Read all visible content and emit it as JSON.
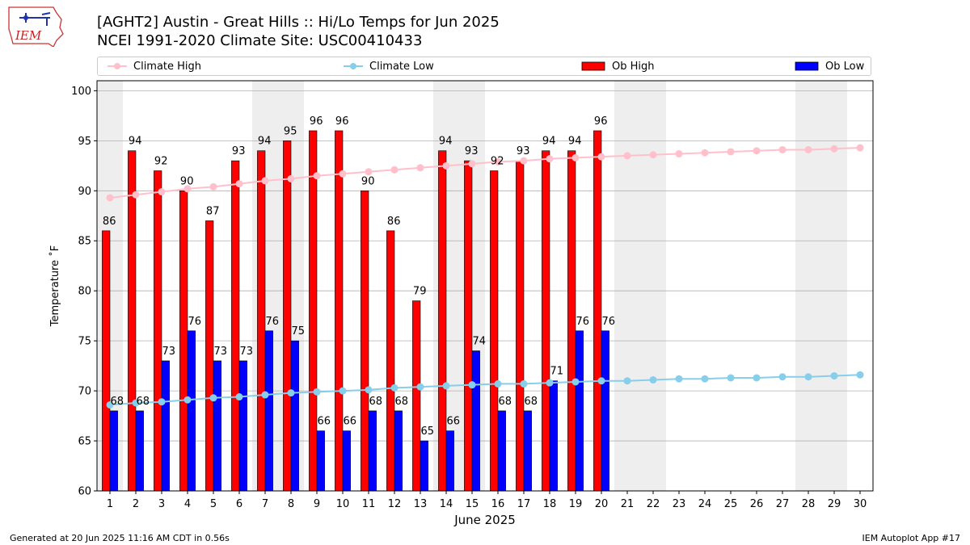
{
  "titles": {
    "line1": "[AGHT2] Austin - Great Hills :: Hi/Lo Temps for Jun 2025",
    "line2": "NCEI 1991-2020 Climate Site: USC00410433"
  },
  "logo": {
    "text": "IEM"
  },
  "footer": {
    "left": "Generated at 20 Jun 2025 11:16 AM CDT in 0.56s",
    "right": "IEM Autoplot App #17"
  },
  "colors": {
    "climate_high": "#ffc0cb",
    "climate_low": "#87ceeb",
    "ob_high": "#ff0000",
    "ob_low": "#0000ff",
    "weekend_band": "#eeeeee",
    "grid": "#b0b0b0"
  },
  "chart_data": {
    "type": "bar",
    "xlabel": "June 2025",
    "ylabel": "Temperature ˚F",
    "ylim": [
      60,
      101
    ],
    "xlim": [
      0.5,
      30.5
    ],
    "yticks": [
      60,
      65,
      70,
      75,
      80,
      85,
      90,
      95,
      100
    ],
    "x": [
      1,
      2,
      3,
      4,
      5,
      6,
      7,
      8,
      9,
      10,
      11,
      12,
      13,
      14,
      15,
      16,
      17,
      18,
      19,
      20,
      21,
      22,
      23,
      24,
      25,
      26,
      27,
      28,
      29,
      30
    ],
    "grid": "horizontal",
    "legend_position": "top",
    "weekend_days": [
      1,
      7,
      8,
      14,
      15,
      21,
      22,
      28,
      29
    ],
    "legend": [
      "Climate High",
      "Climate Low",
      "Ob High",
      "Ob Low"
    ],
    "series": [
      {
        "name": "Ob High",
        "kind": "bar",
        "values": [
          86,
          94,
          92,
          90,
          87,
          93,
          94,
          95,
          96,
          96,
          90,
          86,
          79,
          94,
          93,
          92,
          93,
          94,
          94,
          96,
          null,
          null,
          null,
          null,
          null,
          null,
          null,
          null,
          null,
          null
        ]
      },
      {
        "name": "Ob Low",
        "kind": "bar",
        "values": [
          68,
          68,
          73,
          76,
          73,
          73,
          76,
          75,
          66,
          66,
          68,
          68,
          65,
          66,
          74,
          68,
          68,
          71,
          76,
          76,
          null,
          null,
          null,
          null,
          null,
          null,
          null,
          null,
          null,
          null
        ]
      },
      {
        "name": "Climate High",
        "kind": "line",
        "values": [
          89.3,
          89.6,
          89.9,
          90.2,
          90.4,
          90.7,
          91.0,
          91.2,
          91.5,
          91.7,
          91.9,
          92.1,
          92.3,
          92.5,
          92.7,
          92.9,
          93.0,
          93.2,
          93.3,
          93.4,
          93.5,
          93.6,
          93.7,
          93.8,
          93.9,
          94.0,
          94.1,
          94.1,
          94.2,
          94.3
        ]
      },
      {
        "name": "Climate Low",
        "kind": "line",
        "values": [
          68.6,
          68.8,
          68.9,
          69.1,
          69.3,
          69.4,
          69.6,
          69.8,
          69.9,
          70.0,
          70.1,
          70.3,
          70.4,
          70.5,
          70.6,
          70.7,
          70.7,
          70.8,
          70.9,
          71.0,
          71.0,
          71.1,
          71.2,
          71.2,
          71.3,
          71.3,
          71.4,
          71.4,
          71.5,
          71.6
        ]
      }
    ]
  }
}
